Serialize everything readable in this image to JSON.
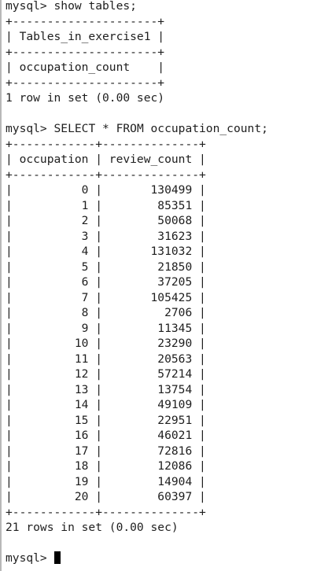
{
  "terminal": {
    "prompt": "mysql> ",
    "query1": {
      "command": "show tables;",
      "border": "+---------------------+",
      "header_row": "| Tables_in_exercise1 |",
      "rows": [
        "| occupation_count    |"
      ],
      "result_summary": "1 row in set (0.00 sec)"
    },
    "query2": {
      "command": "SELECT * FROM occupation_count;",
      "border": "+------------+--------------+",
      "header_row": "| occupation | review_count |",
      "columns": [
        "occupation",
        "review_count"
      ],
      "rows": [
        "|          0 |       130499 |",
        "|          1 |        85351 |",
        "|          2 |        50068 |",
        "|          3 |        31623 |",
        "|          4 |       131032 |",
        "|          5 |        21850 |",
        "|          6 |        37205 |",
        "|          7 |       105425 |",
        "|          8 |         2706 |",
        "|          9 |        11345 |",
        "|         10 |        23290 |",
        "|         11 |        20563 |",
        "|         12 |        57214 |",
        "|         13 |        13754 |",
        "|         14 |        49109 |",
        "|         15 |        22951 |",
        "|         16 |        46021 |",
        "|         17 |        72816 |",
        "|         18 |        12086 |",
        "|         19 |        14904 |",
        "|         20 |        60397 |"
      ],
      "result_summary": "21 rows in set (0.00 sec)"
    }
  }
}
